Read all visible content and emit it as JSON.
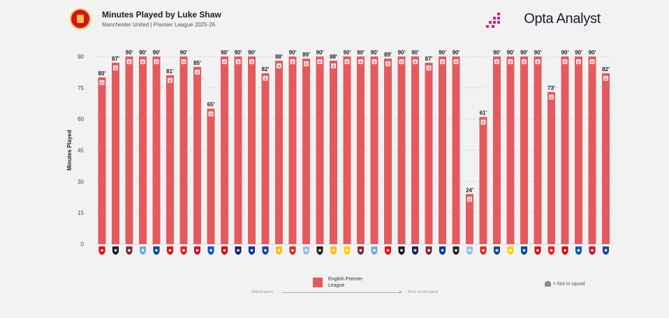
{
  "header": {
    "title": "Minutes Played by Luke Shaw",
    "subtitle": "Manchester United | Premier League 2025-26",
    "brand": "Opta Analyst"
  },
  "colors": {
    "bar": "#e55a5f",
    "text": "#1b1b2f",
    "grid": "#d9d9d9",
    "accent": "#e6197c"
  },
  "chart_data": {
    "type": "bar",
    "ylabel": "Minutes Played",
    "ylim": [
      0,
      90
    ],
    "yticks": [
      0,
      15,
      30,
      45,
      60,
      75,
      90
    ],
    "grid": true,
    "series": [
      {
        "name": "English Premier League",
        "values": [
          80,
          87,
          90,
          90,
          90,
          81,
          90,
          85,
          65,
          90,
          90,
          90,
          82,
          88,
          90,
          89,
          90,
          88,
          90,
          90,
          90,
          89,
          90,
          90,
          87,
          90,
          90,
          24,
          61,
          90,
          90,
          90,
          90,
          73,
          90,
          90,
          90,
          82
        ]
      }
    ],
    "labels": [
      "80'",
      "87'",
      "90'",
      "90'",
      "90'",
      "81'",
      "90'",
      "85'",
      "65'",
      "90'",
      "90'",
      "90'",
      "82'",
      "88'",
      "90'",
      "89'",
      "90'",
      "88'",
      "90'",
      "90'",
      "90'",
      "89'",
      "90'",
      "90'",
      "87'",
      "90'",
      "90'",
      "24'",
      "61'",
      "90'",
      "90'",
      "90'",
      "90'",
      "73'",
      "90'",
      "90'",
      "90'",
      "82'"
    ],
    "venues": [
      "H",
      "A",
      "A",
      "A",
      "H",
      "A",
      "H",
      "A",
      "H",
      "H",
      "A",
      "H",
      "A",
      "H",
      "A",
      "H",
      "A",
      "A",
      "H",
      "A",
      "A",
      "H",
      "H",
      "A",
      "H",
      "A",
      "H",
      "H",
      "A",
      "H",
      "A",
      "H",
      "A",
      "H",
      "H",
      "A",
      "H",
      "A"
    ],
    "opponent_icons": [
      "arsenal-icon",
      "fulham-icon",
      "burnley-icon",
      "man-city-icon",
      "chelsea-icon",
      "brentford-icon",
      "sunderland-icon",
      "liverpool-icon",
      "brighton-icon",
      "nottm-forest-icon",
      "tottenham-icon",
      "everton-icon",
      "crystal-palace-icon",
      "wolves-icon",
      "bournemouth-icon",
      "aston-villa-icon",
      "newcastle-icon",
      "wolves-icon",
      "leeds-icon",
      "burnley-icon",
      "man-city-icon",
      "arsenal-icon",
      "fulham-icon",
      "tottenham-icon",
      "west-ham-icon",
      "everton-icon",
      "newcastle-icon",
      "aston-villa-icon",
      "bournemouth-icon",
      "crystal-palace-icon",
      "leeds-icon",
      "chelsea-icon",
      "brentford-icon",
      "sunderland-icon",
      "nottm-forest-icon",
      "brighton-icon",
      "liverpool-icon",
      "crystal-palace-icon"
    ],
    "icon_colors": [
      "#ef0107",
      "#1b1b1b",
      "#7a263a",
      "#6cabdd",
      "#034694",
      "#e30613",
      "#eb172b",
      "#c8102e",
      "#0057b8",
      "#dd0000",
      "#132257",
      "#003399",
      "#1b458f",
      "#fdb913",
      "#da291c",
      "#95bfe5",
      "#241f20",
      "#fdb913",
      "#ffcd00",
      "#7a263a",
      "#6cabdd",
      "#ef0107",
      "#1b1b1b",
      "#132257",
      "#7a263a",
      "#003399",
      "#241f20",
      "#95bfe5",
      "#da291c",
      "#1b458f",
      "#ffcd00",
      "#034694",
      "#e30613",
      "#eb172b",
      "#dd0000",
      "#0057b8",
      "#c8102e",
      "#1b458f"
    ]
  },
  "legend": {
    "label": "English Premier League"
  },
  "order_note": {
    "oldest": "Oldest game",
    "recent": "Most recent game"
  },
  "not_in_squad": "= Not in squad"
}
